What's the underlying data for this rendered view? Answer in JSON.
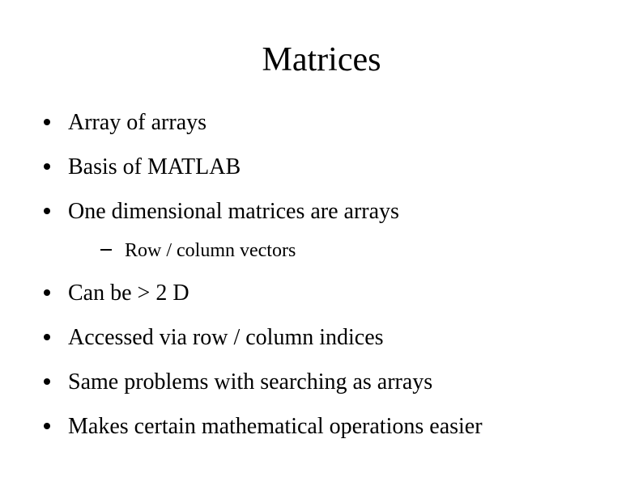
{
  "slide": {
    "title": "Matrices",
    "title_fontsize": 42,
    "body_fontsize": 28,
    "sub_fontsize": 24,
    "text_color": "#000000",
    "background_color": "#ffffff",
    "bullets": [
      {
        "text": "Array of arrays"
      },
      {
        "text": "Basis of MATLAB"
      },
      {
        "text": "One dimensional matrices are arrays",
        "children": [
          {
            "text": "Row / column vectors"
          }
        ]
      },
      {
        "text": "Can be > 2 D"
      },
      {
        "text": "Accessed via row / column indices"
      },
      {
        "text": "Same problems with searching as arrays"
      },
      {
        "text": "Makes certain mathematical operations easier"
      }
    ]
  }
}
